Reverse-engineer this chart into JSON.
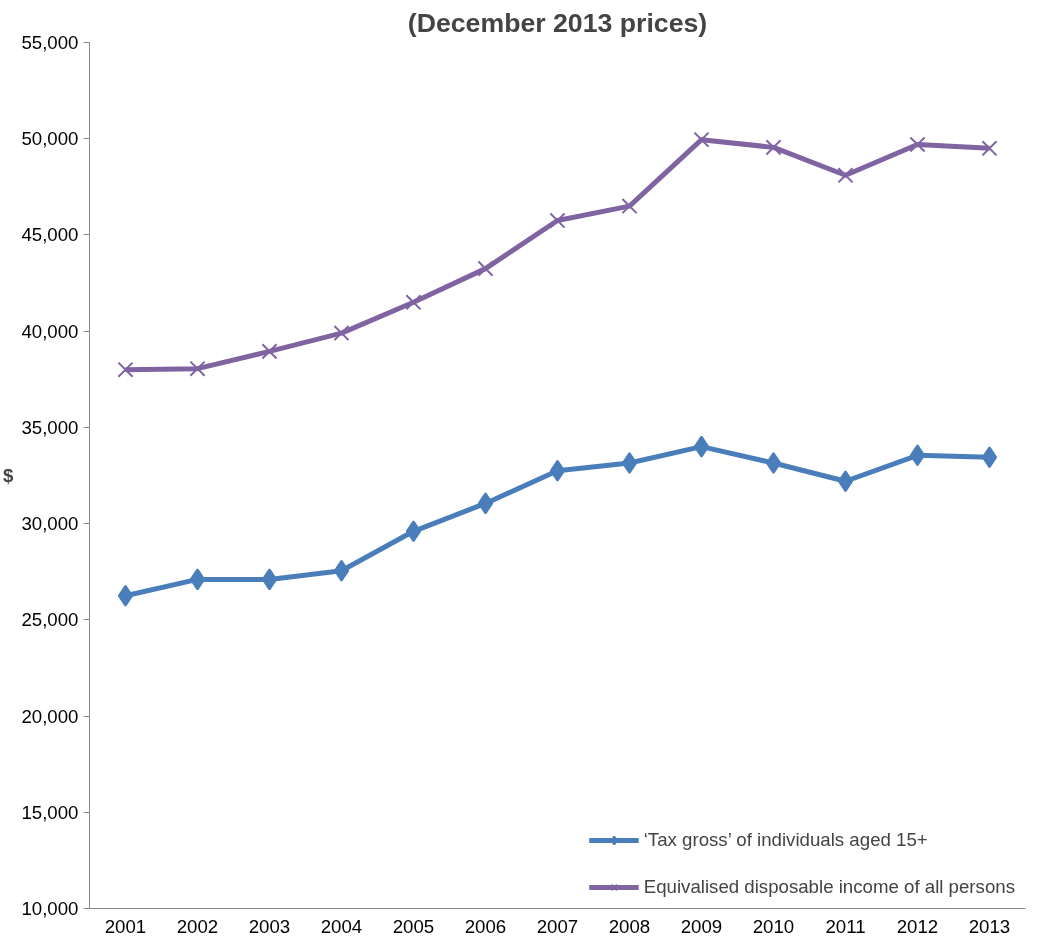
{
  "chart_data": {
    "type": "line",
    "title": "(December 2013 prices)",
    "ylabel": "$",
    "categories": [
      "2001",
      "2002",
      "2003",
      "2004",
      "2005",
      "2006",
      "2007",
      "2008",
      "2009",
      "2010",
      "2011",
      "2012",
      "2013"
    ],
    "series": [
      {
        "name": "‘Tax gross’ of individuals aged 15+",
        "color": "#4a7ebb",
        "marker": "diamond",
        "values": [
          26250,
          27100,
          27100,
          27550,
          29600,
          31050,
          32750,
          33150,
          34000,
          33150,
          32200,
          33550,
          33450
        ]
      },
      {
        "name": "Equivalised disposable income of all persons",
        "color": "#8064a2",
        "marker": "cross",
        "values": [
          38000,
          38050,
          38950,
          39900,
          41500,
          43250,
          45750,
          46500,
          49950,
          49550,
          48100,
          49700,
          49500
        ]
      }
    ],
    "ylim": [
      10000,
      55000
    ],
    "yticks": [
      {
        "value": 10000,
        "label": "10,000"
      },
      {
        "value": 15000,
        "label": "15,000"
      },
      {
        "value": 20000,
        "label": "20,000"
      },
      {
        "value": 25000,
        "label": "25,000"
      },
      {
        "value": 30000,
        "label": "30,000"
      },
      {
        "value": 35000,
        "label": "35,000"
      },
      {
        "value": 40000,
        "label": "40,000"
      },
      {
        "value": 45000,
        "label": "45,000"
      },
      {
        "value": 50000,
        "label": "50,000"
      },
      {
        "value": 55000,
        "label": "55,000"
      }
    ],
    "grid": false,
    "legend": "bottom right"
  }
}
